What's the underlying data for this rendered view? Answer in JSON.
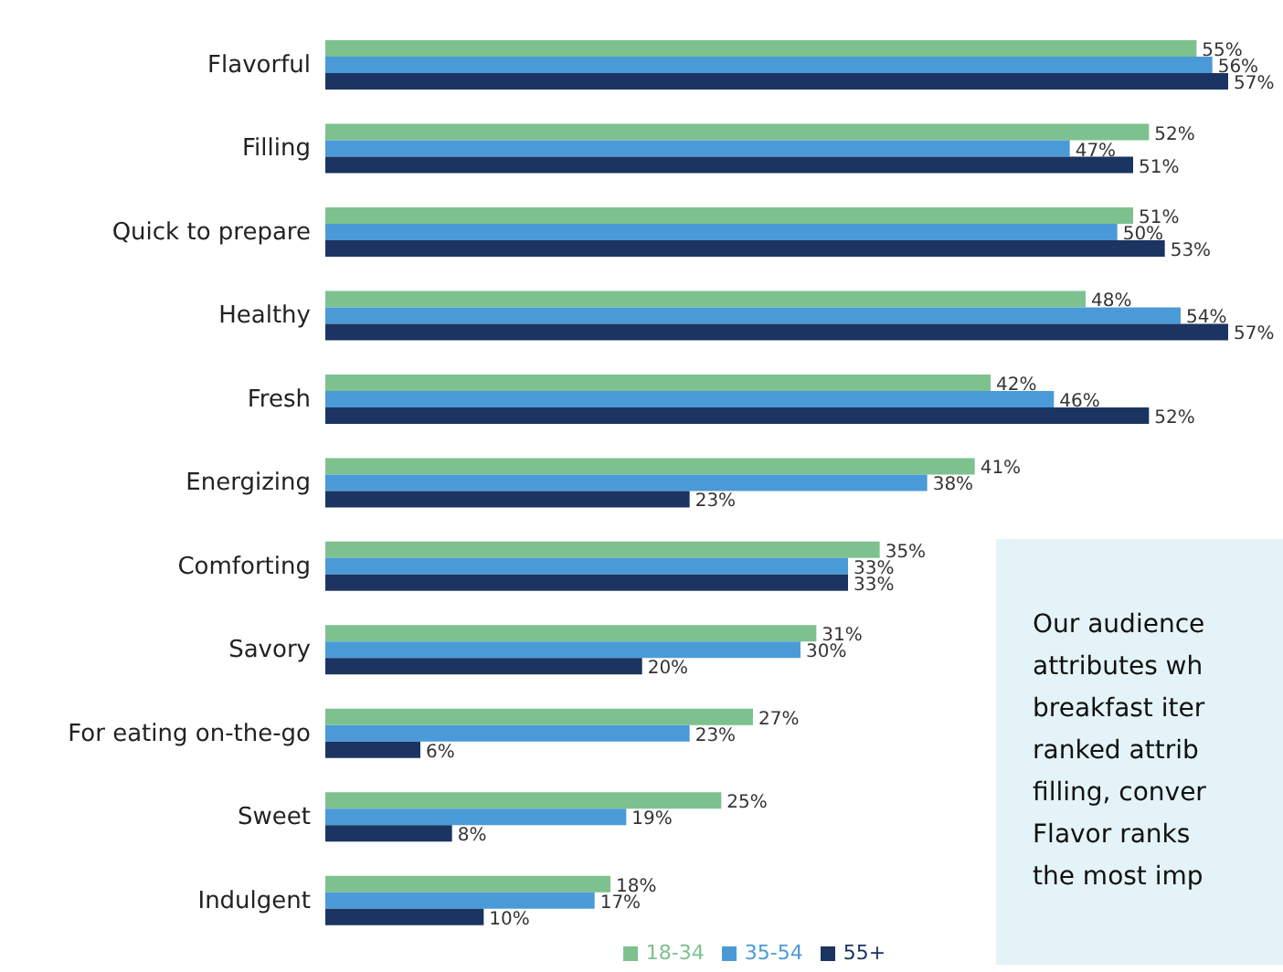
{
  "chart_data": {
    "type": "bar",
    "orientation": "horizontal",
    "categories": [
      "Flavorful",
      "Filling",
      "Quick to prepare",
      "Healthy",
      "Fresh",
      "Energizing",
      "Comforting",
      "Savory",
      "For eating on-the-go",
      "Sweet",
      "Indulgent"
    ],
    "series": [
      {
        "name": "18-34",
        "color": "#7dc18f",
        "values": [
          55,
          52,
          51,
          48,
          42,
          41,
          35,
          31,
          27,
          25,
          18
        ],
        "value_labels": [
          "55%",
          "52%",
          "51%",
          "48%",
          "42%",
          "41%",
          "35%",
          "31%",
          "27%",
          "25%",
          "18%"
        ]
      },
      {
        "name": "35-54",
        "color": "#4a9ad8",
        "values": [
          56,
          47,
          50,
          54,
          46,
          38,
          33,
          30,
          23,
          19,
          17
        ],
        "value_labels": [
          "56%",
          "47%",
          "50%",
          "54%",
          "46%",
          "38%",
          "33%",
          "30%",
          "23%",
          "19%",
          "17%"
        ]
      },
      {
        "name": "55+",
        "color": "#1b3461",
        "values": [
          57,
          51,
          53,
          57,
          52,
          23,
          33,
          20,
          6,
          8,
          10
        ],
        "value_labels": [
          "57%",
          "51%",
          "53%",
          "57%",
          "52%",
          "23%",
          "33%",
          "20%",
          "6%",
          "8%",
          "10%"
        ]
      }
    ],
    "legend": "bottom",
    "annotations": [
      "Our audience",
      "attributes wh",
      "breakfast iter",
      "ranked attrib",
      "filling, conver",
      "Flavor ranks",
      "the most imp"
    ]
  }
}
